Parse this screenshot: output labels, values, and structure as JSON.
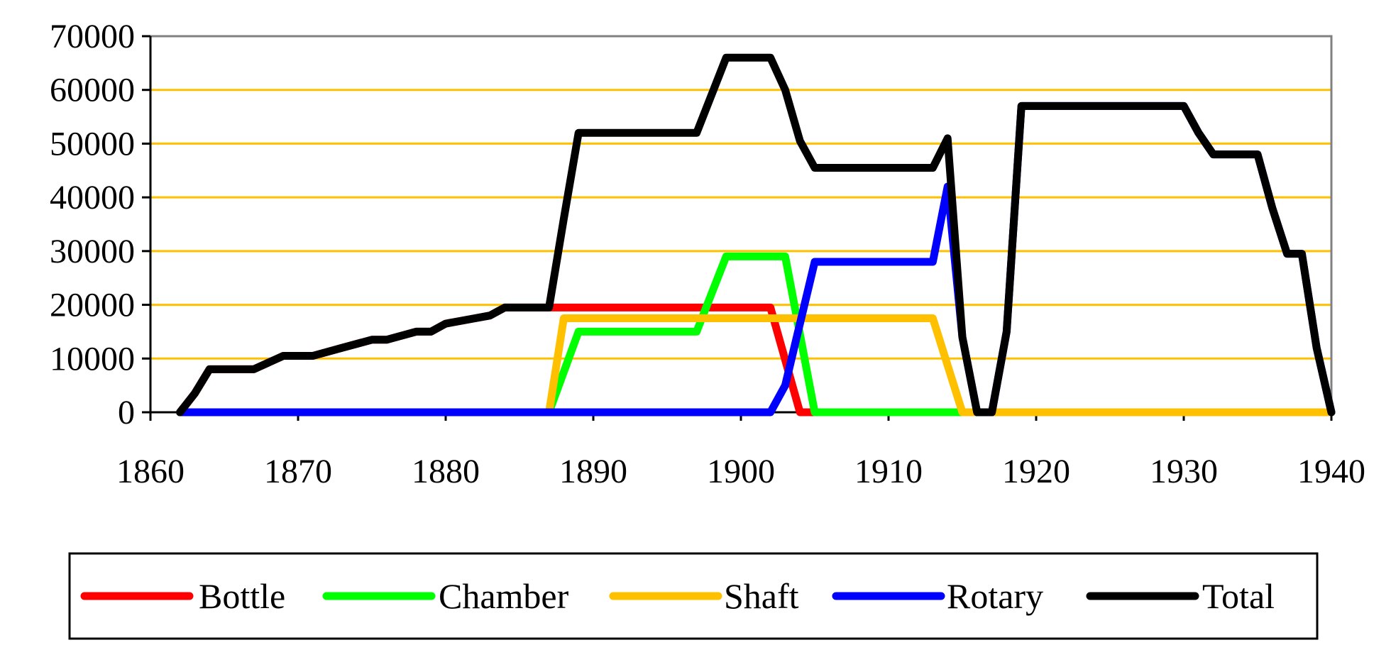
{
  "chart_data": {
    "type": "line",
    "title": "",
    "xlabel": "",
    "ylabel": "",
    "xlim": [
      1860,
      1940
    ],
    "ylim": [
      0,
      70000
    ],
    "x_ticks": [
      1860,
      1870,
      1880,
      1890,
      1900,
      1910,
      1920,
      1930,
      1940
    ],
    "y_ticks": [
      0,
      10000,
      20000,
      30000,
      40000,
      50000,
      60000,
      70000
    ],
    "x_tick_labels": [
      "1860",
      "1870",
      "1880",
      "1890",
      "1900",
      "1910",
      "1920",
      "1930",
      "1940"
    ],
    "y_tick_labels": [
      "0",
      "10000",
      "20000",
      "30000",
      "40000",
      "50000",
      "60000",
      "70000"
    ],
    "grid": "horizontal",
    "legend_position": "bottom",
    "series": [
      {
        "name": "Bottle",
        "color": "#ff0000",
        "points": [
          [
            1862,
            0
          ],
          [
            1863,
            3500
          ],
          [
            1864,
            8000
          ],
          [
            1867,
            8000
          ],
          [
            1869,
            10500
          ],
          [
            1871,
            10500
          ],
          [
            1873,
            12000
          ],
          [
            1875,
            13500
          ],
          [
            1876,
            13500
          ],
          [
            1878,
            15000
          ],
          [
            1879,
            15000
          ],
          [
            1880,
            16500
          ],
          [
            1882,
            17500
          ],
          [
            1883,
            18000
          ],
          [
            1884,
            19500
          ],
          [
            1902,
            19500
          ],
          [
            1904,
            0
          ],
          [
            1940,
            0
          ]
        ]
      },
      {
        "name": "Chamber",
        "color": "#00ff00",
        "points": [
          [
            1862,
            0
          ],
          [
            1887,
            0
          ],
          [
            1889,
            15000
          ],
          [
            1897,
            15000
          ],
          [
            1899,
            29000
          ],
          [
            1902,
            29000
          ],
          [
            1903,
            29000
          ],
          [
            1905,
            0
          ],
          [
            1940,
            0
          ]
        ]
      },
      {
        "name": "Shaft",
        "color": "#ffc000",
        "points": [
          [
            1862,
            0
          ],
          [
            1887,
            0
          ],
          [
            1888,
            17500
          ],
          [
            1913,
            17500
          ],
          [
            1915,
            0
          ],
          [
            1940,
            0
          ]
        ]
      },
      {
        "name": "Rotary",
        "color": "#0000ff",
        "points": [
          [
            1862,
            0
          ],
          [
            1902,
            0
          ],
          [
            1903,
            5000
          ],
          [
            1905,
            28000
          ],
          [
            1913,
            28000
          ],
          [
            1914,
            42000
          ],
          [
            1915,
            14000
          ],
          [
            1916,
            0
          ],
          [
            1917,
            0
          ],
          [
            1918,
            15000
          ],
          [
            1919,
            57000
          ],
          [
            1930,
            57000
          ],
          [
            1931,
            52000
          ],
          [
            1932,
            48000
          ],
          [
            1935,
            48000
          ],
          [
            1936,
            38000
          ],
          [
            1937,
            29500
          ],
          [
            1938,
            29500
          ],
          [
            1939,
            12000
          ],
          [
            1940,
            0
          ]
        ]
      },
      {
        "name": "Total",
        "color": "#000000",
        "points": [
          [
            1862,
            0
          ],
          [
            1863,
            3500
          ],
          [
            1864,
            8000
          ],
          [
            1867,
            8000
          ],
          [
            1869,
            10500
          ],
          [
            1871,
            10500
          ],
          [
            1873,
            12000
          ],
          [
            1875,
            13500
          ],
          [
            1876,
            13500
          ],
          [
            1878,
            15000
          ],
          [
            1879,
            15000
          ],
          [
            1880,
            16500
          ],
          [
            1882,
            17500
          ],
          [
            1883,
            18000
          ],
          [
            1884,
            19500
          ],
          [
            1887,
            19500
          ],
          [
            1888,
            36000
          ],
          [
            1889,
            52000
          ],
          [
            1897,
            52000
          ],
          [
            1898,
            59000
          ],
          [
            1899,
            66000
          ],
          [
            1902,
            66000
          ],
          [
            1903,
            60000
          ],
          [
            1904,
            50500
          ],
          [
            1905,
            45500
          ],
          [
            1913,
            45500
          ],
          [
            1914,
            51000
          ],
          [
            1915,
            14000
          ],
          [
            1916,
            0
          ],
          [
            1917,
            0
          ],
          [
            1918,
            15000
          ],
          [
            1919,
            57000
          ],
          [
            1930,
            57000
          ],
          [
            1931,
            52000
          ],
          [
            1932,
            48000
          ],
          [
            1935,
            48000
          ],
          [
            1936,
            38000
          ],
          [
            1937,
            29500
          ],
          [
            1938,
            29500
          ],
          [
            1939,
            12000
          ],
          [
            1940,
            0
          ]
        ]
      }
    ]
  }
}
